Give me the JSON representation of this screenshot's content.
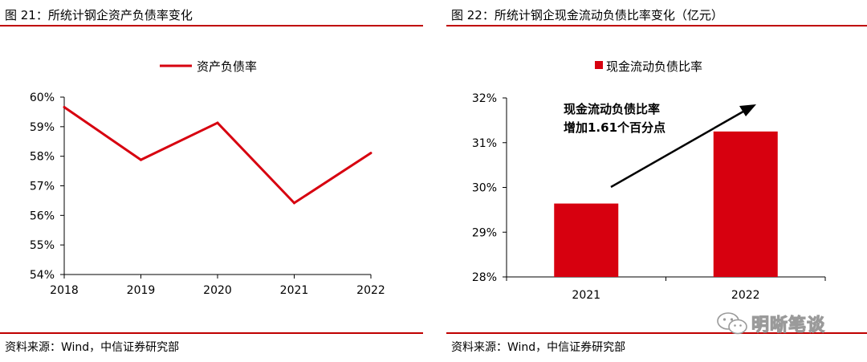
{
  "left": {
    "title": "图 21：所统计钢企资产负债率变化",
    "source": "资料来源：Wind，中信证券研究部"
  },
  "right": {
    "title": "图 22：所统计钢企现金流动负债比率变化（亿元）",
    "source": "资料来源：Wind，中信证券研究部",
    "annotation": [
      "现金流动负债比率",
      "增加1.61个百分点"
    ]
  },
  "watermark": {
    "text": "明晰笔谈",
    "icon": "wechat-icon"
  },
  "chart_data": [
    {
      "type": "line",
      "title": "",
      "legend": {
        "position": "top-center",
        "entries": [
          "资产负债率"
        ]
      },
      "x": [
        "2018",
        "2019",
        "2020",
        "2021",
        "2022"
      ],
      "series": [
        {
          "name": "资产负债率",
          "values": [
            59.66,
            57.88,
            59.13,
            56.42,
            58.11
          ],
          "color": "#d7000f"
        }
      ],
      "ylim": [
        54,
        60
      ],
      "yticks": [
        "54%",
        "55%",
        "56%",
        "57%",
        "58%",
        "59%",
        "60%"
      ],
      "xlabel": "",
      "ylabel": "",
      "grid": false
    },
    {
      "type": "bar",
      "title": "",
      "legend": {
        "position": "top-center",
        "entries": [
          "现金流动负债比率"
        ]
      },
      "categories": [
        "2021",
        "2022"
      ],
      "series": [
        {
          "name": "现金流动负债比率",
          "values": [
            29.64,
            31.25
          ],
          "color": "#d7000f"
        }
      ],
      "ylim": [
        28,
        32
      ],
      "yticks": [
        "28%",
        "29%",
        "30%",
        "31%",
        "32%"
      ],
      "xlabel": "",
      "ylabel": "",
      "grid": false
    }
  ]
}
